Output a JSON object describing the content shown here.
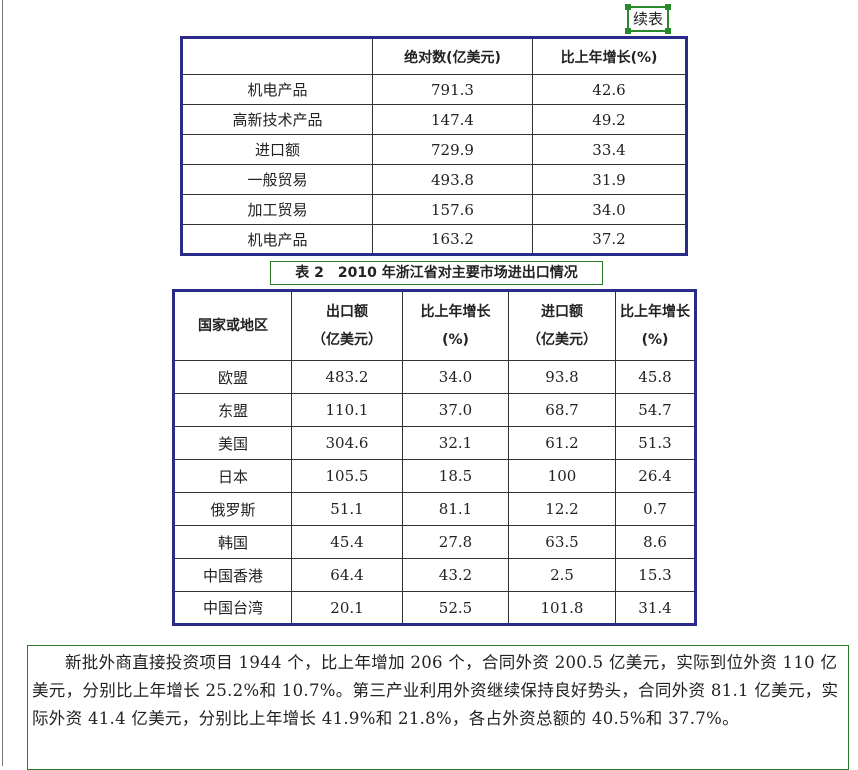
{
  "continued_label": "续表",
  "table1": {
    "headers": [
      "",
      "绝对数(亿美元)",
      "比上年增长(%)"
    ],
    "rows": [
      [
        "机电产品",
        "791.3",
        "42.6"
      ],
      [
        "高新技术产品",
        "147.4",
        "49.2"
      ],
      [
        "进口额",
        "729.9",
        "33.4"
      ],
      [
        "一般贸易",
        "493.8",
        "31.9"
      ],
      [
        "加工贸易",
        "157.6",
        "34.0"
      ],
      [
        "机电产品",
        "163.2",
        "37.2"
      ]
    ]
  },
  "table2": {
    "caption": "表 2　2010 年浙江省对主要市场进出口情况",
    "headers": [
      "国家或地区",
      "出口额（亿美元）",
      "比上年增长(%)",
      "进口额（亿美元）",
      "比上年增长(%)"
    ],
    "rows": [
      [
        "欧盟",
        "483.2",
        "34.0",
        "93.8",
        "45.8"
      ],
      [
        "东盟",
        "110.1",
        "37.0",
        "68.7",
        "54.7"
      ],
      [
        "美国",
        "304.6",
        "32.1",
        "61.2",
        "51.3"
      ],
      [
        "日本",
        "105.5",
        "18.5",
        "100",
        "26.4"
      ],
      [
        "俄罗斯",
        "51.1",
        "81.1",
        "12.2",
        "0.7"
      ],
      [
        "韩国",
        "45.4",
        "27.8",
        "63.5",
        "8.6"
      ],
      [
        "中国香港",
        "64.4",
        "43.2",
        "2.5",
        "15.3"
      ],
      [
        "中国台湾",
        "20.1",
        "52.5",
        "101.8",
        "31.4"
      ]
    ]
  },
  "paragraph": "新批外商直接投资项目 1944 个，比上年增加 206 个，合同外资 200.5 亿美元，实际到位外资 110 亿美元，分别比上年增长 25.2%和 10.7%。第三产业利用外资继续保持良好势头，合同外资 81.1 亿美元，实际外资 41.4 亿美元，分别比上年增长 41.9%和 21.8%，各占外资总额的 40.5%和 37.7%。"
}
